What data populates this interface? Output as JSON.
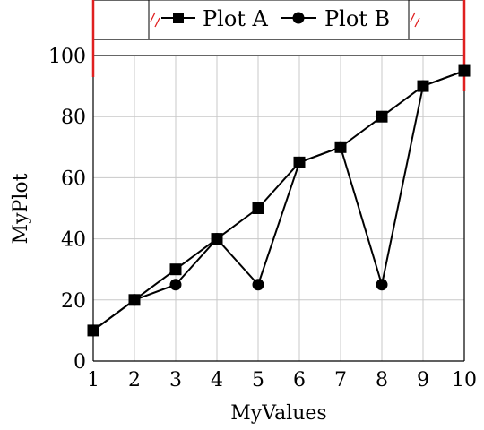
{
  "chart_data": {
    "type": "line",
    "title": "",
    "xlabel": "MyValues",
    "ylabel": "MyPlot",
    "xlim": [
      1,
      10
    ],
    "ylim": [
      0,
      100
    ],
    "x_ticks": [
      "1",
      "2",
      "3",
      "4",
      "5",
      "6",
      "7",
      "8",
      "9",
      "10"
    ],
    "y_ticks": [
      "0",
      "20",
      "40",
      "60",
      "80",
      "100"
    ],
    "grid": true,
    "legend_position": "top",
    "x": [
      1,
      2,
      3,
      4,
      5,
      6,
      7,
      8,
      9,
      10
    ],
    "series": [
      {
        "name": "Plot A",
        "marker": "square",
        "values": [
          10,
          20,
          30,
          40,
          50,
          65,
          70,
          80,
          90,
          95
        ]
      },
      {
        "name": "Plot B",
        "marker": "circle",
        "values": [
          10,
          20,
          25,
          40,
          25,
          65,
          70,
          25,
          90,
          95
        ]
      }
    ],
    "colors": {
      "line": "#000000",
      "grid": "#c8c8c8",
      "axis_break": "#e02020"
    }
  }
}
